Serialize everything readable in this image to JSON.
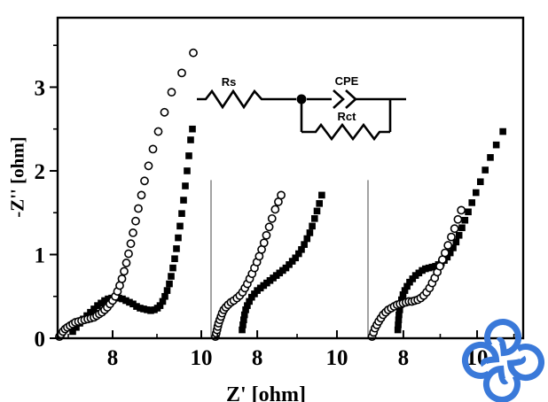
{
  "figure": {
    "xlabel": "Z' [ohm]",
    "ylabel": "-Z'' [ohm]"
  },
  "circuit_inset": {
    "rs_label": "Rs",
    "cpe_label": "CPE",
    "rct_label": "Rct"
  },
  "watermark": {
    "color": "#3a79d9"
  },
  "chart_data": {
    "type": "scatter",
    "title": "",
    "xlabel": "Z' [ohm]",
    "ylabel": "-Z'' [ohm]",
    "ylim": [
      0,
      3.83
    ],
    "y_ticks": [
      0,
      1,
      2,
      3
    ],
    "y_minor_ticks": [
      0.5,
      1.5,
      2.5,
      3.5
    ],
    "grid": false,
    "legend": "none",
    "marker_colors": {
      "open_circle_stroke": "#000000",
      "filled_square": "#000000"
    },
    "panel_divider_color": "#8c8c8c",
    "panel_divider_top_y": 1.89,
    "panels": [
      {
        "name": "left",
        "xlim": [
          6.76,
          10.22
        ],
        "x_major_ticks": [
          8,
          10
        ],
        "x_minor_ticks": [
          7,
          9
        ],
        "series": [
          {
            "name": "filled-squares",
            "marker": "square",
            "points": [
              [
                7.1,
                0.08
              ],
              [
                7.18,
                0.13
              ],
              [
                7.26,
                0.18
              ],
              [
                7.34,
                0.23
              ],
              [
                7.42,
                0.27
              ],
              [
                7.5,
                0.31
              ],
              [
                7.58,
                0.35
              ],
              [
                7.66,
                0.39
              ],
              [
                7.74,
                0.42
              ],
              [
                7.82,
                0.45
              ],
              [
                7.9,
                0.47
              ],
              [
                7.98,
                0.48
              ],
              [
                8.06,
                0.48
              ],
              [
                8.14,
                0.48
              ],
              [
                8.22,
                0.47
              ],
              [
                8.3,
                0.45
              ],
              [
                8.38,
                0.43
              ],
              [
                8.46,
                0.41
              ],
              [
                8.54,
                0.38
              ],
              [
                8.62,
                0.36
              ],
              [
                8.7,
                0.35
              ],
              [
                8.78,
                0.34
              ],
              [
                8.86,
                0.33
              ],
              [
                8.94,
                0.34
              ],
              [
                9.01,
                0.36
              ],
              [
                9.07,
                0.39
              ],
              [
                9.13,
                0.44
              ],
              [
                9.18,
                0.5
              ],
              [
                9.23,
                0.57
              ],
              [
                9.28,
                0.65
              ],
              [
                9.32,
                0.74
              ],
              [
                9.36,
                0.84
              ],
              [
                9.4,
                0.95
              ],
              [
                9.44,
                1.07
              ],
              [
                9.48,
                1.2
              ],
              [
                9.52,
                1.34
              ],
              [
                9.56,
                1.49
              ],
              [
                9.6,
                1.65
              ],
              [
                9.64,
                1.82
              ],
              [
                9.68,
                2.0
              ],
              [
                9.72,
                2.18
              ],
              [
                9.76,
                2.37
              ],
              [
                9.8,
                2.5
              ]
            ]
          },
          {
            "name": "open-circles",
            "marker": "circle",
            "points": [
              [
                6.8,
                0.02
              ],
              [
                6.84,
                0.05
              ],
              [
                6.88,
                0.08
              ],
              [
                6.93,
                0.11
              ],
              [
                6.98,
                0.13
              ],
              [
                7.04,
                0.15
              ],
              [
                7.1,
                0.17
              ],
              [
                7.16,
                0.19
              ],
              [
                7.23,
                0.2
              ],
              [
                7.3,
                0.21
              ],
              [
                7.37,
                0.22
              ],
              [
                7.44,
                0.23
              ],
              [
                7.51,
                0.24
              ],
              [
                7.58,
                0.25
              ],
              [
                7.64,
                0.27
              ],
              [
                7.7,
                0.29
              ],
              [
                7.76,
                0.31
              ],
              [
                7.82,
                0.34
              ],
              [
                7.88,
                0.37
              ],
              [
                7.94,
                0.41
              ],
              [
                8.0,
                0.45
              ],
              [
                8.06,
                0.5
              ],
              [
                8.11,
                0.56
              ],
              [
                8.16,
                0.63
              ],
              [
                8.21,
                0.71
              ],
              [
                8.26,
                0.8
              ],
              [
                8.31,
                0.9
              ],
              [
                8.36,
                1.01
              ],
              [
                8.41,
                1.13
              ],
              [
                8.46,
                1.26
              ],
              [
                8.52,
                1.4
              ],
              [
                8.58,
                1.55
              ],
              [
                8.65,
                1.71
              ],
              [
                8.72,
                1.88
              ],
              [
                8.81,
                2.06
              ],
              [
                8.91,
                2.26
              ],
              [
                9.03,
                2.47
              ],
              [
                9.17,
                2.7
              ],
              [
                9.33,
                2.94
              ],
              [
                9.56,
                3.17
              ],
              [
                9.82,
                3.41
              ]
            ]
          }
        ]
      },
      {
        "name": "middle",
        "xlim": [
          6.84,
          10.78
        ],
        "x_major_ticks": [
          8,
          10
        ],
        "x_minor_ticks": [
          7,
          9
        ],
        "series": [
          {
            "name": "filled-squares",
            "marker": "square",
            "points": [
              [
                7.62,
                0.1
              ],
              [
                7.64,
                0.16
              ],
              [
                7.66,
                0.22
              ],
              [
                7.68,
                0.28
              ],
              [
                7.71,
                0.34
              ],
              [
                7.75,
                0.39
              ],
              [
                7.8,
                0.44
              ],
              [
                7.86,
                0.49
              ],
              [
                7.93,
                0.53
              ],
              [
                8.0,
                0.57
              ],
              [
                8.08,
                0.6
              ],
              [
                8.16,
                0.63
              ],
              [
                8.24,
                0.66
              ],
              [
                8.32,
                0.69
              ],
              [
                8.4,
                0.72
              ],
              [
                8.48,
                0.75
              ],
              [
                8.56,
                0.78
              ],
              [
                8.64,
                0.81
              ],
              [
                8.72,
                0.84
              ],
              [
                8.8,
                0.88
              ],
              [
                8.88,
                0.92
              ],
              [
                8.96,
                0.96
              ],
              [
                9.04,
                1.01
              ],
              [
                9.11,
                1.06
              ],
              [
                9.18,
                1.12
              ],
              [
                9.25,
                1.19
              ],
              [
                9.32,
                1.26
              ],
              [
                9.38,
                1.34
              ],
              [
                9.44,
                1.43
              ],
              [
                9.5,
                1.52
              ],
              [
                9.56,
                1.61
              ],
              [
                9.62,
                1.71
              ]
            ]
          },
          {
            "name": "open-circles",
            "marker": "circle",
            "points": [
              [
                6.95,
                0.02
              ],
              [
                6.97,
                0.06
              ],
              [
                6.99,
                0.1
              ],
              [
                7.01,
                0.14
              ],
              [
                7.03,
                0.18
              ],
              [
                7.06,
                0.22
              ],
              [
                7.09,
                0.26
              ],
              [
                7.12,
                0.3
              ],
              [
                7.16,
                0.34
              ],
              [
                7.21,
                0.37
              ],
              [
                7.27,
                0.4
              ],
              [
                7.34,
                0.43
              ],
              [
                7.41,
                0.45
              ],
              [
                7.49,
                0.48
              ],
              [
                7.56,
                0.51
              ],
              [
                7.63,
                0.55
              ],
              [
                7.69,
                0.6
              ],
              [
                7.75,
                0.65
              ],
              [
                7.81,
                0.71
              ],
              [
                7.87,
                0.77
              ],
              [
                7.93,
                0.84
              ],
              [
                7.99,
                0.91
              ],
              [
                8.05,
                0.98
              ],
              [
                8.11,
                1.06
              ],
              [
                8.17,
                1.14
              ],
              [
                8.23,
                1.23
              ],
              [
                8.3,
                1.33
              ],
              [
                8.37,
                1.43
              ],
              [
                8.45,
                1.54
              ],
              [
                8.53,
                1.63
              ],
              [
                8.6,
                1.71
              ]
            ]
          }
        ]
      },
      {
        "name": "right",
        "xlim": [
          7.04,
          11.25
        ],
        "x_major_ticks": [
          8,
          10
        ],
        "x_minor_ticks": [
          9,
          11
        ],
        "series": [
          {
            "name": "filled-squares",
            "marker": "square",
            "points": [
              [
                7.85,
                0.1
              ],
              [
                7.86,
                0.16
              ],
              [
                7.87,
                0.22
              ],
              [
                7.88,
                0.28
              ],
              [
                7.9,
                0.34
              ],
              [
                7.92,
                0.4
              ],
              [
                7.95,
                0.46
              ],
              [
                7.99,
                0.52
              ],
              [
                8.04,
                0.57
              ],
              [
                8.1,
                0.62
              ],
              [
                8.17,
                0.67
              ],
              [
                8.25,
                0.71
              ],
              [
                8.33,
                0.75
              ],
              [
                8.42,
                0.78
              ],
              [
                8.51,
                0.81
              ],
              [
                8.6,
                0.83
              ],
              [
                8.69,
                0.84
              ],
              [
                8.78,
                0.85
              ],
              [
                8.87,
                0.86
              ],
              [
                8.95,
                0.88
              ],
              [
                9.03,
                0.9
              ],
              [
                9.11,
                0.93
              ],
              [
                9.19,
                0.97
              ],
              [
                9.27,
                1.02
              ],
              [
                9.35,
                1.08
              ],
              [
                9.43,
                1.15
              ],
              [
                9.51,
                1.23
              ],
              [
                9.59,
                1.32
              ],
              [
                9.67,
                1.41
              ],
              [
                9.76,
                1.51
              ],
              [
                9.86,
                1.62
              ],
              [
                9.97,
                1.74
              ],
              [
                10.09,
                1.87
              ],
              [
                10.22,
                2.01
              ],
              [
                10.36,
                2.16
              ],
              [
                10.52,
                2.31
              ],
              [
                10.7,
                2.47
              ]
            ]
          },
          {
            "name": "open-circles",
            "marker": "circle",
            "points": [
              [
                7.15,
                0.02
              ],
              [
                7.19,
                0.07
              ],
              [
                7.23,
                0.12
              ],
              [
                7.28,
                0.16
              ],
              [
                7.33,
                0.2
              ],
              [
                7.39,
                0.24
              ],
              [
                7.45,
                0.28
              ],
              [
                7.52,
                0.31
              ],
              [
                7.59,
                0.34
              ],
              [
                7.67,
                0.36
              ],
              [
                7.75,
                0.38
              ],
              [
                7.83,
                0.4
              ],
              [
                7.91,
                0.41
              ],
              [
                7.99,
                0.42
              ],
              [
                8.07,
                0.43
              ],
              [
                8.15,
                0.44
              ],
              [
                8.23,
                0.44
              ],
              [
                8.31,
                0.45
              ],
              [
                8.39,
                0.46
              ],
              [
                8.47,
                0.48
              ],
              [
                8.55,
                0.51
              ],
              [
                8.63,
                0.55
              ],
              [
                8.71,
                0.6
              ],
              [
                8.78,
                0.66
              ],
              [
                8.85,
                0.72
              ],
              [
                8.92,
                0.79
              ],
              [
                8.99,
                0.86
              ],
              [
                9.06,
                0.94
              ],
              [
                9.13,
                1.02
              ],
              [
                9.21,
                1.11
              ],
              [
                9.3,
                1.21
              ],
              [
                9.39,
                1.31
              ],
              [
                9.48,
                1.42
              ],
              [
                9.57,
                1.53
              ]
            ]
          }
        ]
      }
    ]
  }
}
